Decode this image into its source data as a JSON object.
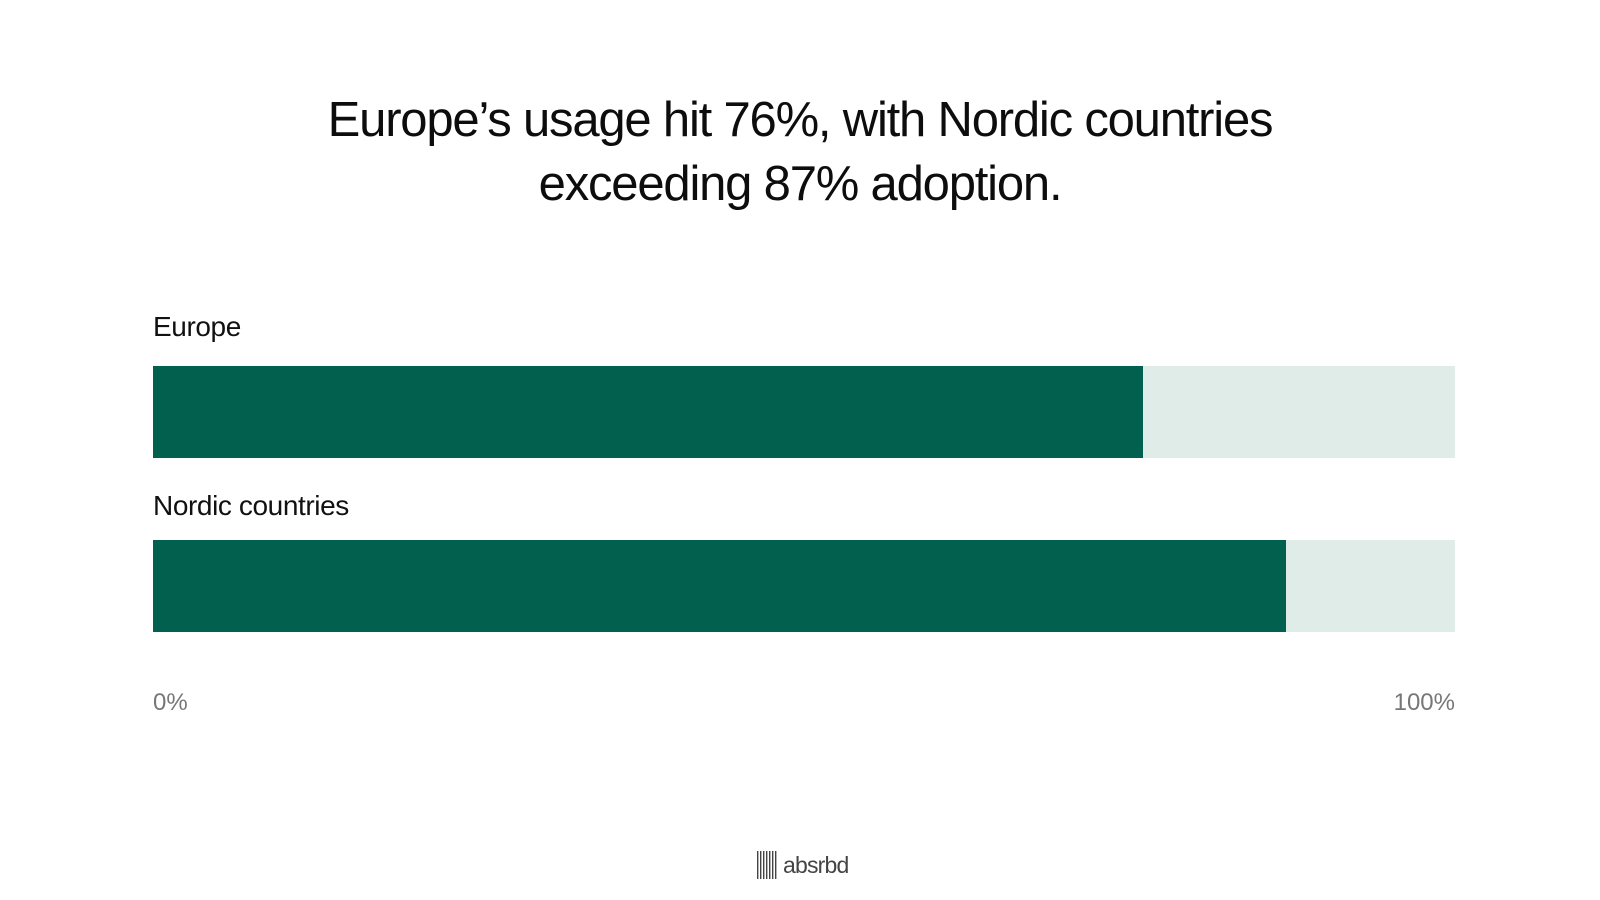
{
  "chart_data": {
    "type": "bar",
    "orientation": "horizontal",
    "title": [
      "Europe’s usage hit 76%, with Nordic countries",
      "exceeding 87% adoption."
    ],
    "categories": [
      "Europe",
      "Nordic countries"
    ],
    "values": [
      76,
      87
    ],
    "xlim": [
      0,
      100
    ],
    "tick_labels": [
      "0%",
      "100%"
    ],
    "grid": false,
    "legend": "none",
    "colors": {
      "fill": "#02604f",
      "track": "#e0ece8"
    }
  },
  "logo_text": "absrbd"
}
